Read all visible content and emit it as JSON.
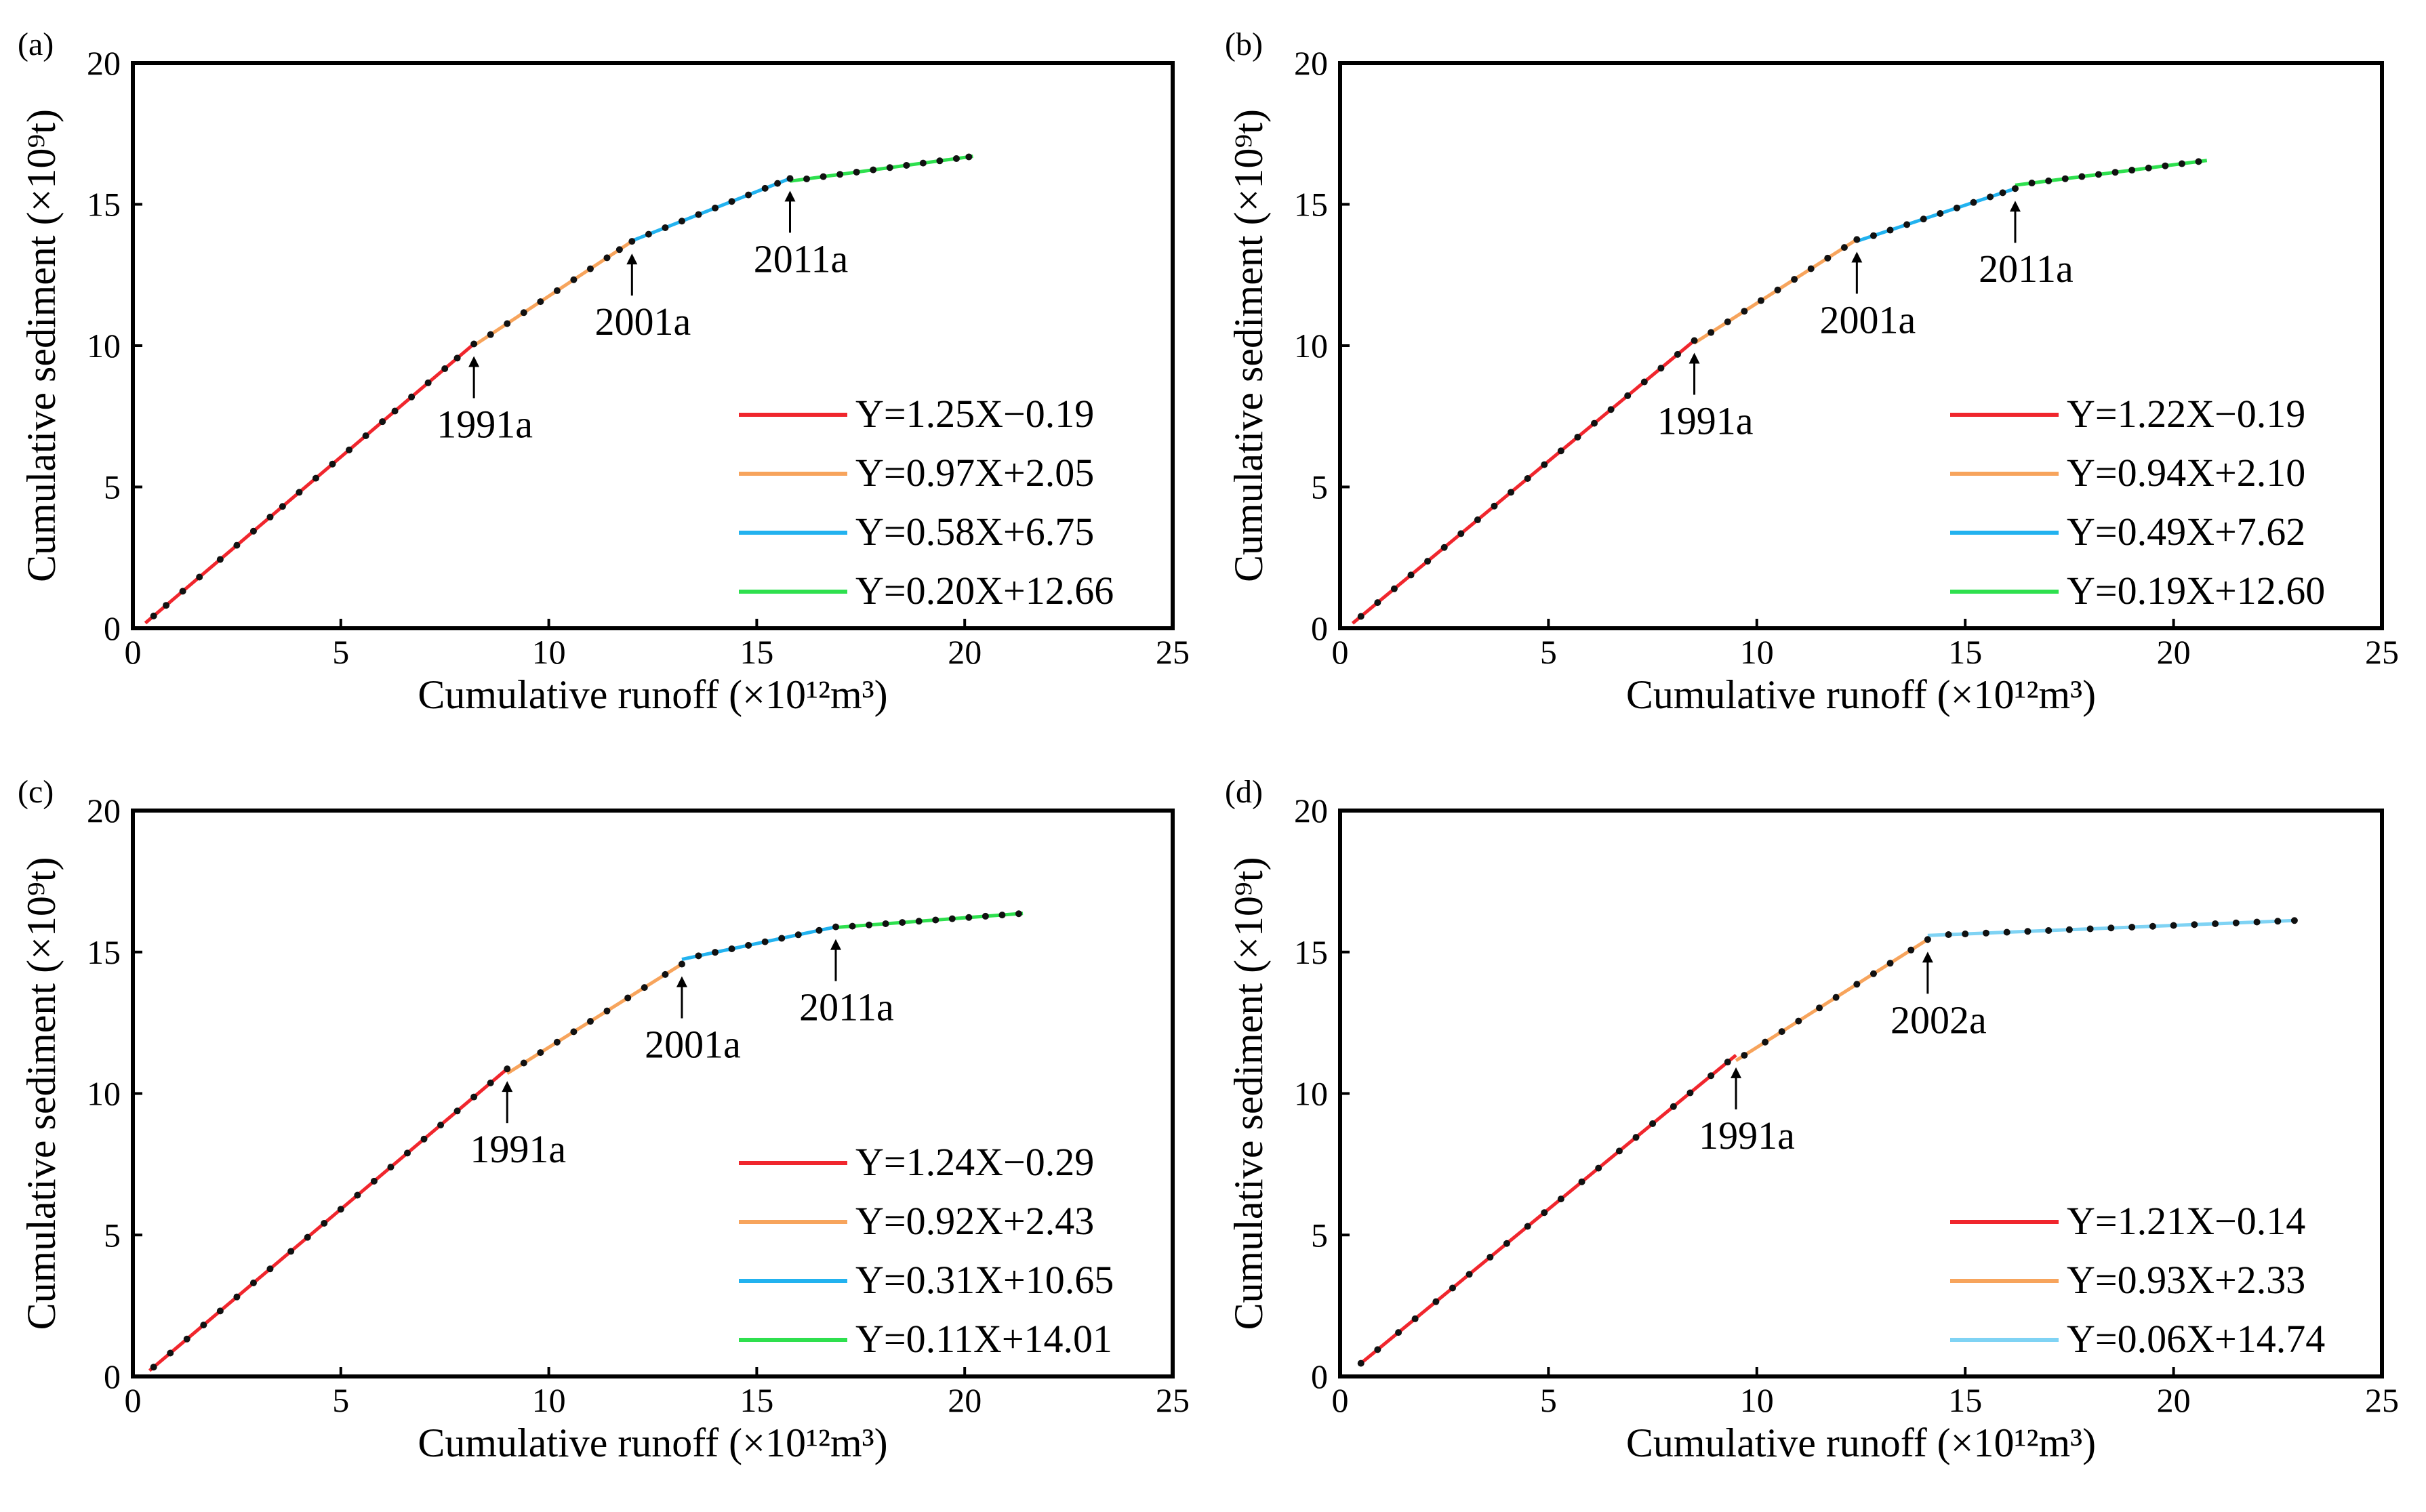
{
  "figure": {
    "colors": {
      "red": "#f0262d",
      "orange": "#f7a45c",
      "blue": "#22b2ef",
      "lightblue": "#7fd3f4",
      "green": "#2ee04e",
      "points": "#111111"
    }
  },
  "chart_data": [
    {
      "type": "line",
      "panel": "(a)",
      "xlabel": "Cumulative runoff (×10¹²m³)",
      "ylabel": "Cumulative sediment (×10⁹t)",
      "xlim": [
        0,
        25
      ],
      "ylim": [
        0,
        20
      ],
      "xticks": [
        "0",
        "5",
        "10",
        "15",
        "20",
        "25"
      ],
      "yticks": [
        "0",
        "5",
        "10",
        "15",
        "20"
      ],
      "segments": [
        {
          "name": "Y=1.25X−0.19",
          "color": "red",
          "x": [
            0.3,
            8.2
          ]
        },
        {
          "name": "Y=0.97X+2.05",
          "color": "orange",
          "x": [
            8.2,
            12.0
          ]
        },
        {
          "name": "Y=0.58X+6.75",
          "color": "blue",
          "x": [
            12.0,
            15.8
          ]
        },
        {
          "name": "Y=0.20X+12.66",
          "color": "green",
          "x": [
            15.8,
            20.2
          ]
        }
      ],
      "breakpoints": [
        {
          "label": "1991a",
          "x": 8.2
        },
        {
          "label": "2001a",
          "x": 12.0
        },
        {
          "label": "2011a",
          "x": 15.8
        }
      ],
      "points_x": [
        0.5,
        0.8,
        1.2,
        1.6,
        2.1,
        2.5,
        2.9,
        3.3,
        3.6,
        4.0,
        4.4,
        4.8,
        5.2,
        5.6,
        6.0,
        6.3,
        6.7,
        7.1,
        7.5,
        7.8,
        8.2,
        8.6,
        9.0,
        9.4,
        9.8,
        10.2,
        10.6,
        11.0,
        11.4,
        11.7,
        12.0,
        12.4,
        12.8,
        13.2,
        13.6,
        14.0,
        14.4,
        14.8,
        15.2,
        15.5,
        15.8,
        16.2,
        16.6,
        17.0,
        17.4,
        17.8,
        18.2,
        18.6,
        19.0,
        19.4,
        19.8,
        20.1
      ]
    },
    {
      "type": "line",
      "panel": "(b)",
      "xlabel": "Cumulative runoff (×10¹²m³)",
      "ylabel": "Cumulative sediment (×10⁹t)",
      "xlim": [
        0,
        25
      ],
      "ylim": [
        0,
        20
      ],
      "xticks": [
        "0",
        "5",
        "10",
        "15",
        "20",
        "25"
      ],
      "yticks": [
        "0",
        "5",
        "10",
        "15",
        "20"
      ],
      "segments": [
        {
          "name": "Y=1.22X−0.19",
          "color": "red",
          "x": [
            0.3,
            8.5
          ]
        },
        {
          "name": "Y=0.94X+2.10",
          "color": "orange",
          "x": [
            8.5,
            12.4
          ]
        },
        {
          "name": "Y=0.49X+7.62",
          "color": "blue",
          "x": [
            12.4,
            16.2
          ]
        },
        {
          "name": "Y=0.19X+12.60",
          "color": "green",
          "x": [
            16.2,
            20.8
          ]
        }
      ],
      "breakpoints": [
        {
          "label": "1991a",
          "x": 8.5
        },
        {
          "label": "2001a",
          "x": 12.4
        },
        {
          "label": "2011a",
          "x": 16.2
        }
      ],
      "points_x": [
        0.5,
        0.9,
        1.3,
        1.7,
        2.1,
        2.5,
        2.9,
        3.3,
        3.7,
        4.1,
        4.5,
        4.9,
        5.3,
        5.7,
        6.1,
        6.5,
        6.9,
        7.3,
        7.7,
        8.1,
        8.5,
        8.9,
        9.3,
        9.7,
        10.1,
        10.5,
        10.9,
        11.3,
        11.7,
        12.1,
        12.4,
        12.8,
        13.2,
        13.6,
        14.0,
        14.4,
        14.8,
        15.2,
        15.6,
        15.9,
        16.2,
        16.6,
        17.0,
        17.4,
        17.8,
        18.2,
        18.6,
        19.0,
        19.4,
        19.8,
        20.2,
        20.6
      ]
    },
    {
      "type": "line",
      "panel": "(c)",
      "xlabel": "Cumulative runoff (×10¹²m³)",
      "ylabel": "Cumulative sediment (×10⁹t)",
      "xlim": [
        0,
        25
      ],
      "ylim": [
        0,
        20
      ],
      "xticks": [
        "0",
        "5",
        "10",
        "15",
        "20",
        "25"
      ],
      "yticks": [
        "0",
        "5",
        "10",
        "15",
        "20"
      ],
      "segments": [
        {
          "name": "Y=1.24X−0.29",
          "color": "red",
          "x": [
            0.4,
            9.0
          ]
        },
        {
          "name": "Y=0.92X+2.43",
          "color": "orange",
          "x": [
            9.0,
            13.2
          ]
        },
        {
          "name": "Y=0.31X+10.65",
          "color": "blue",
          "x": [
            13.2,
            16.9
          ]
        },
        {
          "name": "Y=0.11X+14.01",
          "color": "green",
          "x": [
            16.9,
            21.4
          ]
        }
      ],
      "breakpoints": [
        {
          "label": "1991a",
          "x": 9.0
        },
        {
          "label": "2001a",
          "x": 13.2
        },
        {
          "label": "2011a",
          "x": 16.9
        }
      ],
      "points_x": [
        0.5,
        0.9,
        1.3,
        1.7,
        2.1,
        2.5,
        2.9,
        3.3,
        3.8,
        4.2,
        4.6,
        5.0,
        5.4,
        5.8,
        6.2,
        6.6,
        7.0,
        7.4,
        7.8,
        8.2,
        8.6,
        9.0,
        9.4,
        9.8,
        10.2,
        10.6,
        11.0,
        11.4,
        11.9,
        12.3,
        12.8,
        13.2,
        13.6,
        14.0,
        14.4,
        14.8,
        15.2,
        15.6,
        16.0,
        16.5,
        16.9,
        17.3,
        17.7,
        18.1,
        18.5,
        18.9,
        19.3,
        19.7,
        20.1,
        20.5,
        20.9,
        21.3
      ]
    },
    {
      "type": "line",
      "panel": "(d)",
      "xlabel": "Cumulative runoff (×10¹²m³)",
      "ylabel": "Cumulative sediment (×10⁹t)",
      "xlim": [
        0,
        25
      ],
      "ylim": [
        0,
        20
      ],
      "xticks": [
        "0",
        "5",
        "10",
        "15",
        "20",
        "25"
      ],
      "yticks": [
        "0",
        "5",
        "10",
        "15",
        "20"
      ],
      "segments": [
        {
          "name": "Y=1.21X−0.14",
          "color": "red",
          "x": [
            0.5,
            9.5
          ]
        },
        {
          "name": "Y=0.93X+2.33",
          "color": "orange",
          "x": [
            9.5,
            14.1
          ]
        },
        {
          "name": "Y=0.06X+14.74",
          "color": "lightblue",
          "x": [
            14.1,
            22.9
          ]
        }
      ],
      "breakpoints": [
        {
          "label": "1991a",
          "x": 9.5
        },
        {
          "label": "2002a",
          "x": 14.1
        }
      ],
      "points_x": [
        0.5,
        0.9,
        1.4,
        1.8,
        2.3,
        2.7,
        3.1,
        3.6,
        4.0,
        4.5,
        4.9,
        5.3,
        5.8,
        6.2,
        6.7,
        7.1,
        7.5,
        8.0,
        8.4,
        8.9,
        9.3,
        9.7,
        10.2,
        10.6,
        11.0,
        11.5,
        11.9,
        12.4,
        12.8,
        13.2,
        13.7,
        14.1,
        14.6,
        15.0,
        15.5,
        16.0,
        16.5,
        17.0,
        17.5,
        18.0,
        18.5,
        19.0,
        19.5,
        20.0,
        20.5,
        21.0,
        21.5,
        22.0,
        22.5,
        22.9
      ]
    }
  ]
}
